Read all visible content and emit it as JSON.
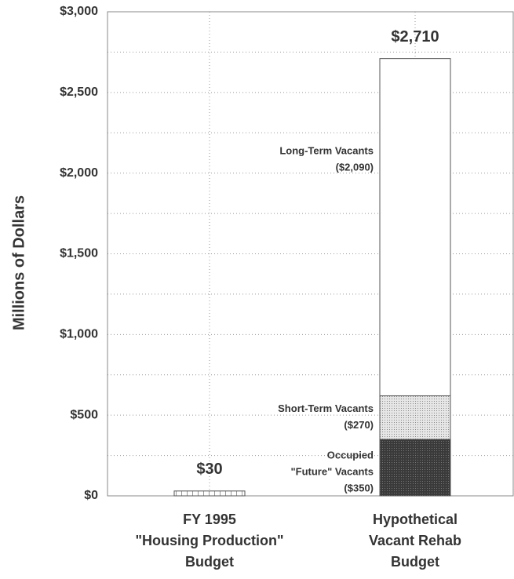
{
  "chart_data": {
    "type": "stacked_bar",
    "y_axis_label": "Millions of Dollars",
    "categories": [
      [
        "FY 1995",
        "\"Housing Production\"",
        "Budget"
      ],
      [
        "Hypothetical",
        "Vacant Rehab",
        "Budget"
      ]
    ],
    "series": [
      {
        "label": [],
        "color": "#ffffff",
        "pattern": "hatch",
        "values": [
          30,
          null
        ],
        "value_labels": [
          null,
          null
        ]
      },
      {
        "label": [
          "Occupied",
          "\"Future\" Vacants"
        ],
        "color": "#3a3a3a",
        "pattern": "dots-dark",
        "values": [
          null,
          350
        ],
        "value_labels": [
          null,
          "($350)"
        ]
      },
      {
        "label": [
          "Short-Term Vacants"
        ],
        "color": "#cfcfcf",
        "pattern": "dots-light",
        "values": [
          null,
          270
        ],
        "value_labels": [
          null,
          "($270)"
        ]
      },
      {
        "label": [
          "Long-Term Vacants"
        ],
        "color": "#ffffff",
        "pattern": "none",
        "values": [
          null,
          2090
        ],
        "value_labels": [
          null,
          "($2,090)"
        ]
      }
    ],
    "totals": [
      30,
      2710
    ],
    "total_labels": [
      "$30",
      "$2,710"
    ],
    "ylim": [
      0,
      3000
    ],
    "yticks": [
      {
        "value": 0,
        "label": "$0"
      },
      {
        "value": 500,
        "label": "$500"
      },
      {
        "value": 1000,
        "label": "$1,000"
      },
      {
        "value": 1500,
        "label": "$1,500"
      },
      {
        "value": 2000,
        "label": "$2,000"
      },
      {
        "value": 2500,
        "label": "$2,500"
      },
      {
        "value": 3000,
        "label": "$3,000"
      }
    ],
    "minor_yticks": [
      250,
      750,
      1250,
      1750,
      2250,
      2750
    ],
    "grid": true
  }
}
